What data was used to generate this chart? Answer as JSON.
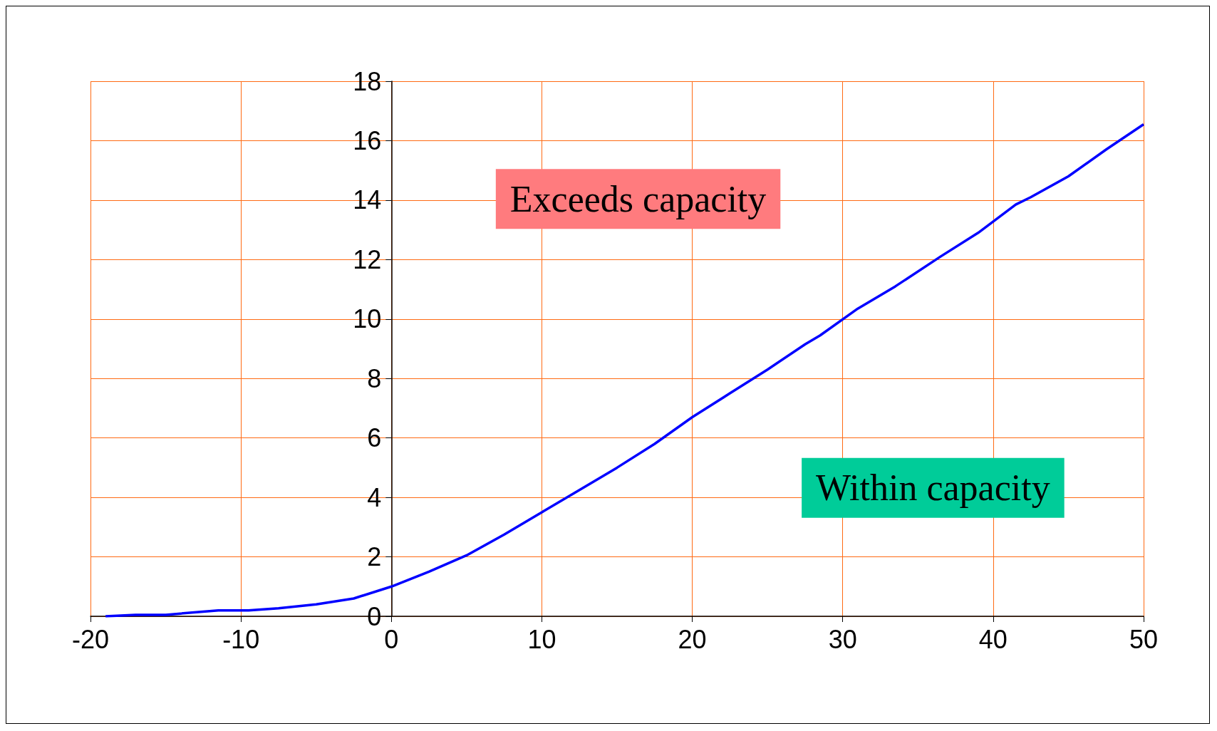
{
  "chart_data": {
    "type": "line",
    "x": [
      -19,
      -17,
      -15,
      -11.5,
      -9.5,
      -7.5,
      -5,
      -2.5,
      0,
      2.5,
      5,
      7.5,
      10,
      12.5,
      15,
      17.5,
      20,
      22.5,
      25,
      27.5,
      28.5,
      31,
      33.5,
      36.5,
      39,
      41.5,
      42.5,
      45,
      47.5,
      50
    ],
    "series": [
      {
        "color": "#0000ff",
        "values": [
          0,
          0.05,
          0.05,
          0.2,
          0.2,
          0.27,
          0.4,
          0.6,
          1.0,
          1.5,
          2.05,
          2.75,
          3.5,
          4.25,
          5.0,
          5.8,
          6.7,
          7.5,
          8.3,
          9.15,
          9.45,
          10.35,
          11.1,
          12.1,
          12.9,
          13.85,
          14.1,
          14.8,
          15.7,
          16.55
        ]
      }
    ],
    "xlim": [
      -20,
      50
    ],
    "xticks": [
      -20,
      -10,
      0,
      10,
      20,
      30,
      40,
      50
    ],
    "ylim": [
      0,
      18
    ],
    "yticks": [
      0,
      2,
      4,
      6,
      8,
      10,
      12,
      14,
      16,
      18
    ],
    "grid": true,
    "marker": "none",
    "line_style": "solid",
    "annotations": [
      "Exceeds capacity",
      "Within capacity"
    ]
  }
}
